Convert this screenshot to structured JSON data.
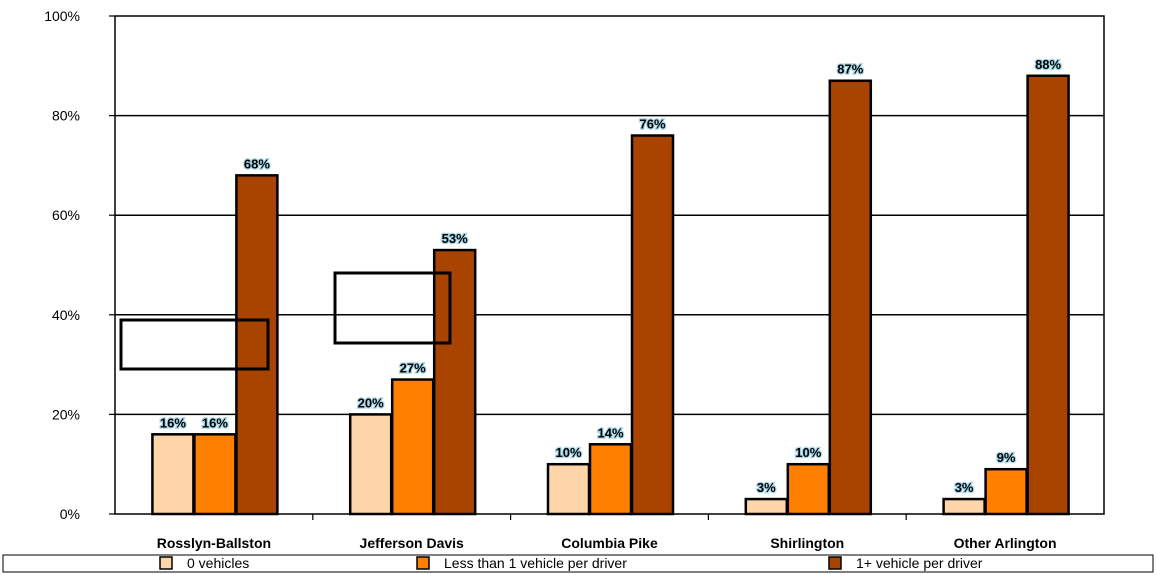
{
  "chart_data": {
    "type": "bar",
    "categories": [
      "Rosslyn-Ballston",
      "Jefferson Davis",
      "Columbia Pike",
      "Shirlington",
      "Other Arlington"
    ],
    "series": [
      {
        "name": "0 vehicles",
        "color": "#fdd5a8",
        "values": [
          16,
          20,
          10,
          3,
          3
        ]
      },
      {
        "name": "Less than 1 vehicle per driver",
        "color": "#ff7f00",
        "values": [
          16,
          27,
          14,
          10,
          9
        ]
      },
      {
        "name": "1+ vehicle per driver",
        "color": "#a84400",
        "values": [
          68,
          53,
          76,
          87,
          88
        ]
      }
    ],
    "ylim": [
      0,
      100
    ],
    "yticks": [
      0,
      20,
      40,
      60,
      80,
      100
    ],
    "ytick_labels": [
      "0%",
      "20%",
      "40%",
      "60%",
      "80%",
      "100%"
    ],
    "value_suffix": "%",
    "grid": true,
    "legend_position": "bottom",
    "title": "",
    "xlabel": "",
    "ylabel": ""
  }
}
